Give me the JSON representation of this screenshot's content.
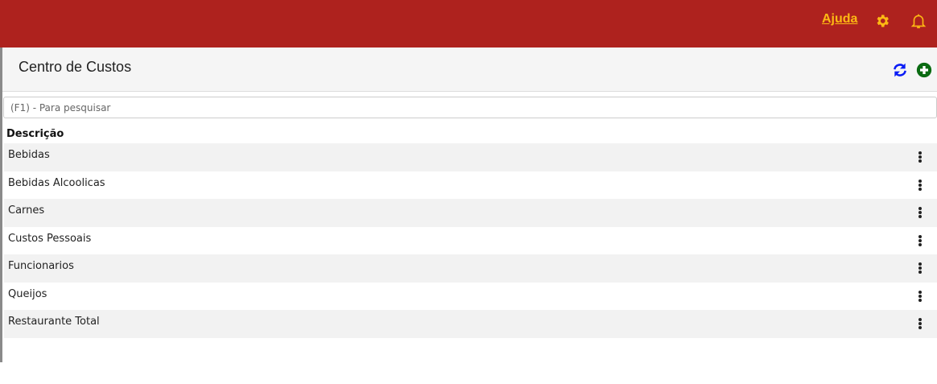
{
  "header": {
    "help_label": "Ajuda",
    "settings_icon": "gear-icon",
    "notifications_icon": "bell-icon",
    "bar_color": "#ae221e",
    "accent_color": "#fdb913"
  },
  "panel": {
    "title": "Centro de Custos",
    "refresh_icon": "refresh-icon",
    "add_icon": "plus-circle-icon"
  },
  "search": {
    "placeholder": "(F1) - Para pesquisar",
    "value": ""
  },
  "table": {
    "column": "Descrição",
    "rows": [
      {
        "label": "Bebidas"
      },
      {
        "label": "Bebidas Alcoolicas"
      },
      {
        "label": "Carnes"
      },
      {
        "label": "Custos Pessoais"
      },
      {
        "label": "Funcionarios"
      },
      {
        "label": "Queijos"
      },
      {
        "label": "Restaurante Total"
      }
    ]
  }
}
